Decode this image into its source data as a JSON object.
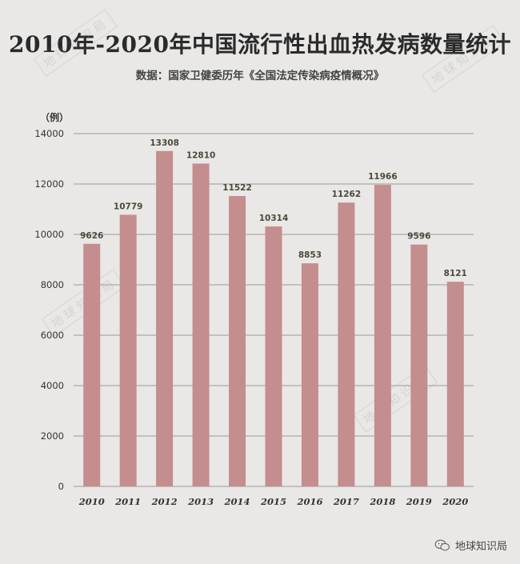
{
  "header": {
    "title": "2010年-2020年中国流行性出血热发病数量统计",
    "source": "数据：国家卫健委历年《全国法定传染病疫情概况》",
    "unit": "（例）"
  },
  "watermark": {
    "text": "地球知识局"
  },
  "footer": {
    "brand": "地球知识局",
    "icon": "wechat-icon"
  },
  "colors": {
    "bar": "#c48d8e",
    "grid": "#9a9a9a",
    "background": "#e9e8e6"
  },
  "chart_data": {
    "type": "bar",
    "title": "2010年-2020年中国流行性出血热发病数量统计",
    "ylabel": "（例）",
    "xlabel": "",
    "ylim": [
      0,
      14000
    ],
    "yticks": [
      0,
      2000,
      4000,
      6000,
      8000,
      10000,
      12000,
      14000
    ],
    "grid": true,
    "categories": [
      "2010",
      "2011",
      "2012",
      "2013",
      "2014",
      "2015",
      "2016",
      "2017",
      "2018",
      "2019",
      "2020"
    ],
    "values": [
      9626,
      10779,
      13308,
      12810,
      11522,
      10314,
      8853,
      11262,
      11966,
      9596,
      8121
    ]
  }
}
